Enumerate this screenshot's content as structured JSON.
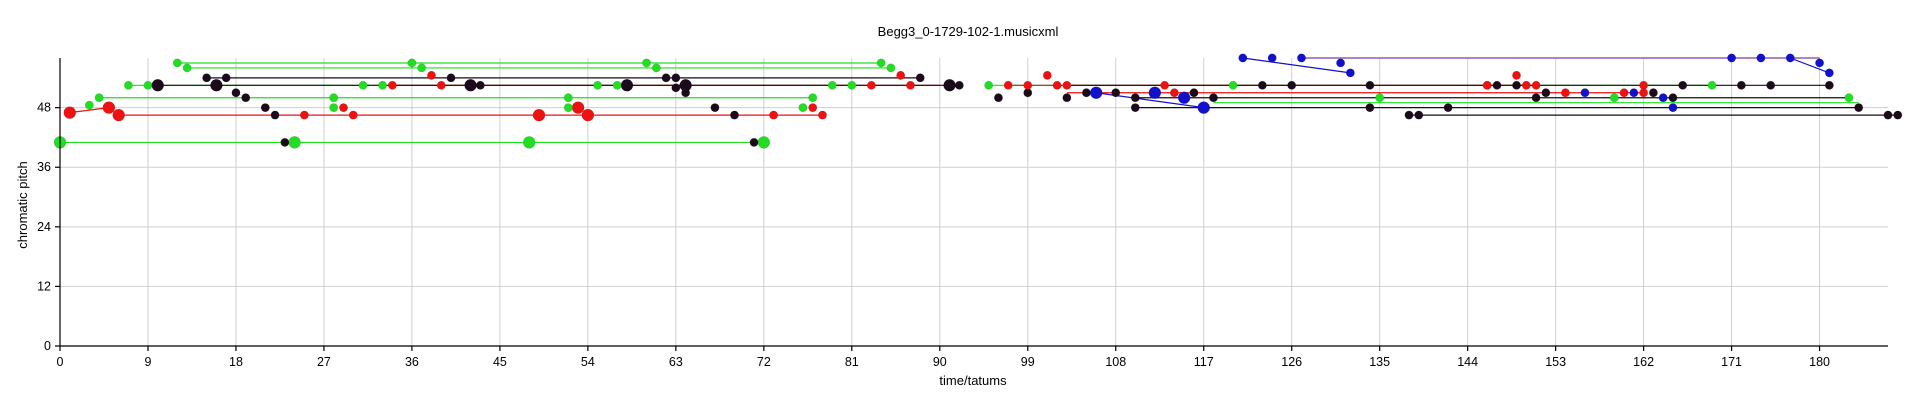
{
  "chart_data": {
    "type": "scatter",
    "title": "Begg3_0-1729-102-1.musicxml",
    "xlabel": "time/tatums",
    "ylabel": "chromatic pitch",
    "xlim": [
      0,
      187
    ],
    "ylim": [
      0,
      58
    ],
    "xticks": [
      0,
      9,
      18,
      27,
      36,
      45,
      54,
      63,
      72,
      81,
      90,
      99,
      108,
      117,
      126,
      135,
      144,
      153,
      162,
      171,
      180
    ],
    "yticks": [
      0,
      12,
      24,
      36,
      48
    ],
    "grid": true,
    "colors": {
      "green": "#22dd22",
      "red": "#ee1111",
      "black": "#1a0a1a",
      "blue": "#1111cc",
      "purple": "#7a3fa0"
    },
    "series": [
      {
        "color": "green",
        "size": "large",
        "points": [
          [
            0,
            41
          ],
          [
            24,
            41
          ],
          [
            48,
            41
          ],
          [
            72,
            41
          ]
        ]
      },
      {
        "color": "black",
        "size": "small",
        "points": [
          [
            23,
            41
          ],
          [
            71,
            41
          ]
        ]
      },
      {
        "color": "red",
        "size": "large",
        "points": [
          [
            1,
            47
          ],
          [
            5,
            48
          ],
          [
            6,
            46.5
          ],
          [
            49,
            46.5
          ],
          [
            53,
            48
          ],
          [
            54,
            46.5
          ]
        ]
      },
      {
        "color": "red",
        "size": "small",
        "points": [
          [
            25,
            46.5
          ],
          [
            29,
            48
          ],
          [
            30,
            46.5
          ],
          [
            73,
            46.5
          ],
          [
            77,
            48
          ],
          [
            78,
            46.5
          ]
        ]
      },
      {
        "color": "black",
        "size": "small",
        "points": [
          [
            18,
            51
          ],
          [
            19,
            50
          ],
          [
            21,
            48
          ],
          [
            22,
            46.5
          ],
          [
            63,
            52
          ],
          [
            64,
            51
          ],
          [
            67,
            48
          ],
          [
            69,
            46.5
          ],
          [
            96,
            50
          ],
          [
            99,
            51
          ],
          [
            103,
            50
          ],
          [
            110,
            50
          ],
          [
            116,
            51
          ],
          [
            118,
            50
          ],
          [
            151,
            50
          ],
          [
            152,
            51
          ],
          [
            163,
            51
          ],
          [
            165,
            50
          ],
          [
            105,
            51
          ],
          [
            108,
            51
          ]
        ]
      },
      {
        "color": "green",
        "size": "small",
        "points": [
          [
            3,
            48.5
          ],
          [
            4,
            50
          ],
          [
            7,
            52.5
          ],
          [
            9,
            52.5
          ],
          [
            12,
            57
          ],
          [
            13,
            56
          ],
          [
            28,
            48
          ],
          [
            28,
            50
          ],
          [
            31,
            52.5
          ],
          [
            33,
            52.5
          ],
          [
            36,
            57
          ],
          [
            37,
            56
          ],
          [
            52,
            48
          ],
          [
            52,
            50
          ],
          [
            55,
            52.5
          ],
          [
            57,
            52.5
          ],
          [
            60,
            57
          ],
          [
            61,
            56
          ],
          [
            76,
            48
          ],
          [
            77,
            50
          ],
          [
            79,
            52.5
          ],
          [
            81,
            52.5
          ],
          [
            84,
            57
          ],
          [
            85,
            56
          ],
          [
            95,
            52.5
          ],
          [
            120,
            52.5
          ],
          [
            135,
            50
          ],
          [
            146,
            52.5
          ],
          [
            159,
            50
          ],
          [
            169,
            52.5
          ],
          [
            183,
            50
          ]
        ]
      },
      {
        "color": "black",
        "size": "large",
        "points": [
          [
            10,
            52.5
          ],
          [
            16,
            52.5
          ],
          [
            42,
            52.5
          ],
          [
            58,
            52.5
          ],
          [
            64,
            52.5
          ],
          [
            91,
            52.5
          ]
        ]
      },
      {
        "color": "black",
        "size": "small",
        "points": [
          [
            15,
            54
          ],
          [
            17,
            54
          ],
          [
            43,
            52.5
          ],
          [
            40,
            54
          ],
          [
            62,
            54
          ],
          [
            63,
            54
          ],
          [
            88,
            54
          ],
          [
            91,
            52.5
          ],
          [
            92,
            52.5
          ],
          [
            123,
            52.5
          ],
          [
            126,
            52.5
          ],
          [
            134,
            52.5
          ],
          [
            147,
            52.5
          ],
          [
            149,
            52.5
          ],
          [
            166,
            52.5
          ],
          [
            172,
            52.5
          ],
          [
            175,
            52.5
          ],
          [
            181,
            52.5
          ],
          [
            184,
            48
          ],
          [
            187,
            46.5
          ],
          [
            188,
            46.5
          ],
          [
            138,
            46.5
          ],
          [
            139,
            46.5
          ],
          [
            134,
            48
          ],
          [
            110,
            48
          ],
          [
            142,
            48
          ]
        ]
      },
      {
        "color": "red",
        "size": "small",
        "points": [
          [
            34,
            52.5
          ],
          [
            38,
            54.5
          ],
          [
            39,
            52.5
          ],
          [
            83,
            52.5
          ],
          [
            86,
            54.5
          ],
          [
            87,
            52.5
          ],
          [
            97,
            52.5
          ],
          [
            99,
            52.5
          ],
          [
            101,
            54.5
          ],
          [
            102,
            52.5
          ],
          [
            103,
            52.5
          ],
          [
            113,
            52.5
          ],
          [
            114,
            51
          ],
          [
            146,
            52.5
          ],
          [
            149,
            54.5
          ],
          [
            150,
            52.5
          ],
          [
            151,
            52.5
          ],
          [
            154,
            51
          ],
          [
            162,
            52.5
          ],
          [
            160,
            51
          ],
          [
            162,
            51
          ]
        ]
      },
      {
        "color": "blue",
        "size": "large",
        "points": [
          [
            106,
            51
          ],
          [
            112,
            51
          ],
          [
            115,
            50
          ],
          [
            117,
            48
          ]
        ]
      },
      {
        "color": "blue",
        "size": "small",
        "points": [
          [
            121,
            58
          ],
          [
            124,
            58
          ],
          [
            127,
            58
          ],
          [
            131,
            57
          ],
          [
            132,
            55
          ],
          [
            156,
            51
          ],
          [
            161,
            51
          ],
          [
            164,
            50
          ],
          [
            165,
            48
          ],
          [
            171,
            58
          ],
          [
            174,
            58
          ],
          [
            177,
            58
          ],
          [
            180,
            57
          ],
          [
            181,
            55
          ]
        ]
      }
    ],
    "lines": [
      {
        "color": "green",
        "from": [
          0,
          41
        ],
        "to": [
          72,
          41
        ]
      },
      {
        "color": "red",
        "from": [
          1,
          47
        ],
        "to": [
          5,
          48
        ]
      },
      {
        "color": "red",
        "from": [
          6,
          46.5
        ],
        "to": [
          78,
          46.5
        ]
      },
      {
        "color": "green",
        "from": [
          4,
          50
        ],
        "to": [
          77,
          50
        ]
      },
      {
        "color": "green",
        "from": [
          7,
          52.5
        ],
        "to": [
          81,
          52.5
        ]
      },
      {
        "color": "green",
        "from": [
          12,
          57
        ],
        "to": [
          84,
          57
        ]
      },
      {
        "color": "green",
        "from": [
          13,
          56
        ],
        "to": [
          85,
          56
        ]
      },
      {
        "color": "black",
        "from": [
          15,
          54
        ],
        "to": [
          88,
          54
        ]
      },
      {
        "color": "red",
        "from": [
          34,
          52.5
        ],
        "to": [
          90,
          52.5
        ]
      },
      {
        "color": "black",
        "from": [
          10,
          52.5
        ],
        "to": [
          92,
          52.5
        ]
      },
      {
        "color": "green",
        "from": [
          95,
          52.5
        ],
        "to": [
          169,
          52.5
        ]
      },
      {
        "color": "red",
        "from": [
          97,
          52.5
        ],
        "to": [
          151,
          52.5
        ]
      },
      {
        "color": "black",
        "from": [
          103,
          52.5
        ],
        "to": [
          181,
          52.5
        ]
      },
      {
        "color": "red",
        "from": [
          103,
          51
        ],
        "to": [
          162,
          51
        ]
      },
      {
        "color": "black",
        "from": [
          110,
          50
        ],
        "to": [
          183,
          50
        ]
      },
      {
        "color": "green",
        "from": [
          118,
          49
        ],
        "to": [
          184,
          49
        ]
      },
      {
        "color": "black",
        "from": [
          110,
          48
        ],
        "to": [
          184,
          48
        ]
      },
      {
        "color": "black",
        "from": [
          138,
          46.5
        ],
        "to": [
          188,
          46.5
        ]
      },
      {
        "color": "purple",
        "from": [
          127,
          58
        ],
        "to": [
          180,
          58
        ]
      },
      {
        "color": "blue",
        "from": [
          121,
          58
        ],
        "to": [
          132,
          55
        ]
      },
      {
        "color": "blue",
        "from": [
          106,
          51
        ],
        "to": [
          117,
          48
        ]
      },
      {
        "color": "blue",
        "from": [
          177,
          58
        ],
        "to": [
          181,
          55
        ]
      }
    ]
  }
}
